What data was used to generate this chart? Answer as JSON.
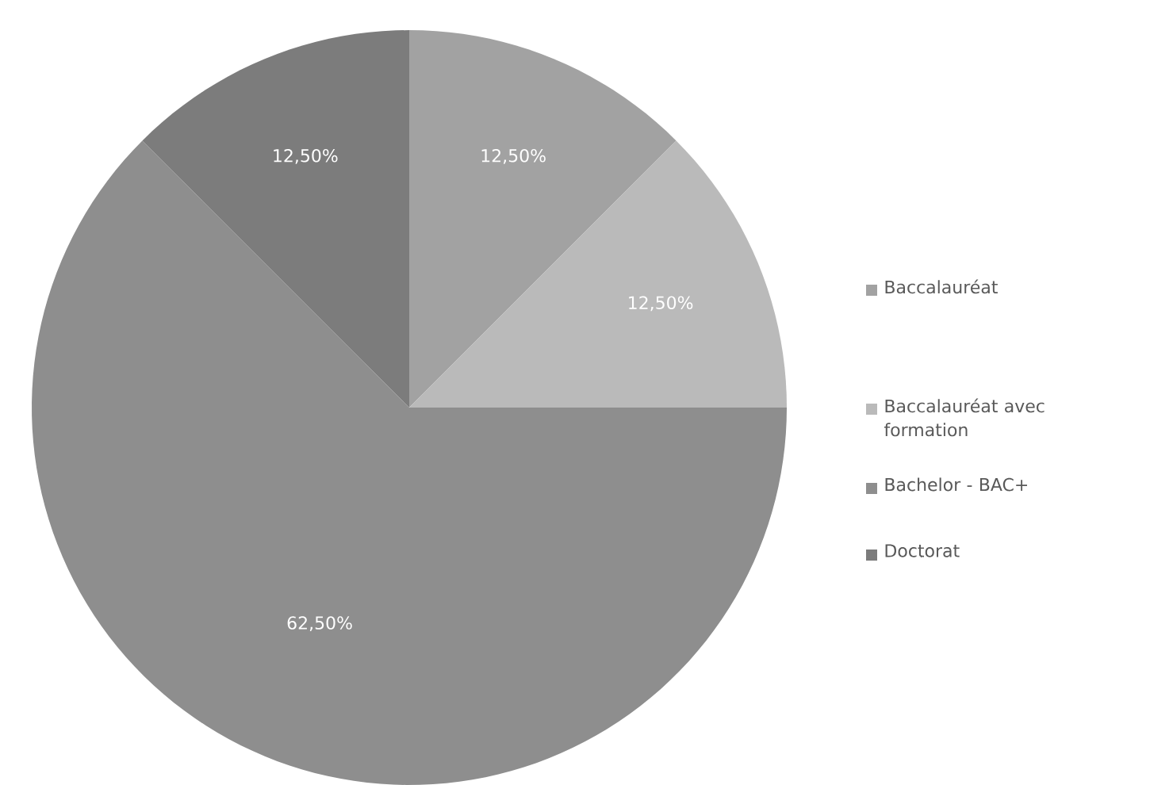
{
  "chart_data": {
    "type": "pie",
    "categories": [
      "Baccalauréat",
      "Baccalauréat avec formation",
      "Bachelor - BAC+",
      "Doctorat"
    ],
    "values": [
      12.5,
      12.5,
      62.5,
      12.5
    ],
    "colors": [
      "#a2a2a2",
      "#bababa",
      "#8e8e8e",
      "#7c7c7c"
    ],
    "value_labels": [
      "12,50%",
      "12,50%",
      "62,50%",
      "12,50%"
    ],
    "legend": "right"
  }
}
